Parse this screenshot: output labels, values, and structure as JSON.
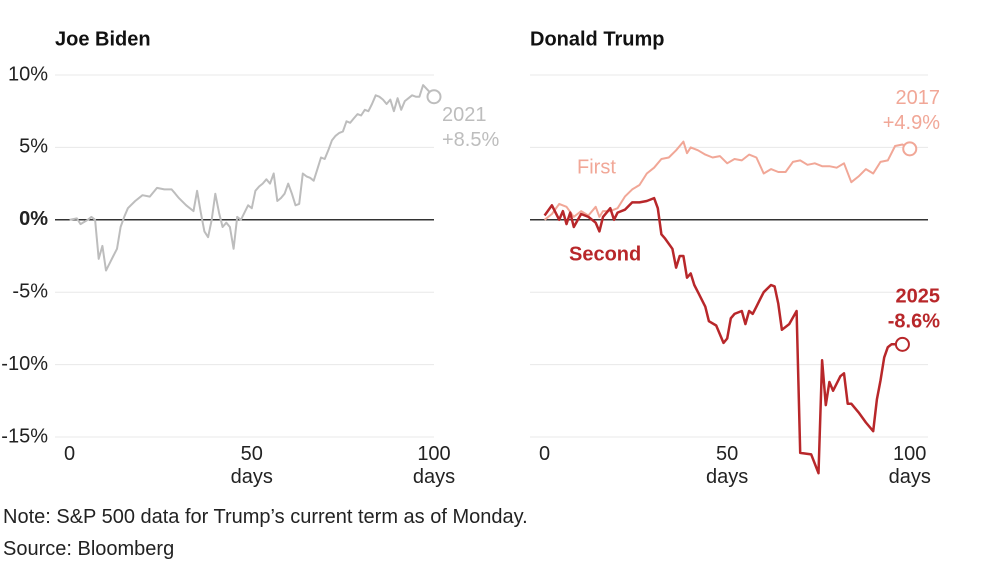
{
  "chart_data": [
    {
      "type": "line",
      "title": "Joe Biden",
      "xlim": [
        -4,
        100
      ],
      "xticks": [
        0,
        {
          "value": 50,
          "label": "50 days"
        },
        {
          "value": 100,
          "label": "100 days"
        }
      ],
      "ylim": [
        -15,
        10
      ],
      "yticks": [
        {
          "value": 10,
          "label": "10%"
        },
        {
          "value": 5,
          "label": "5%"
        },
        {
          "value": 0,
          "label": "0%"
        },
        {
          "value": -5,
          "label": "-5%"
        },
        {
          "value": -10,
          "label": "-10%"
        },
        {
          "value": -15,
          "label": "-15%"
        }
      ],
      "ytick_labels": true,
      "grid": true,
      "series": [
        {
          "color": "#bdbdbd",
          "end_labels": [
            "2021",
            "+8.5%"
          ],
          "x": [
            0,
            2,
            3,
            5,
            6,
            7,
            8,
            9,
            10,
            11,
            12,
            13,
            14,
            15,
            16,
            18,
            20,
            22,
            24,
            26,
            28,
            29,
            30,
            32,
            34,
            35,
            36,
            37,
            38,
            39,
            40,
            41,
            42,
            43,
            44,
            45,
            46,
            47,
            48,
            49,
            50,
            51,
            52,
            53,
            54,
            55,
            56,
            57,
            58,
            59,
            60,
            61,
            62,
            63,
            64,
            65,
            66,
            67,
            68,
            69,
            70,
            71,
            72,
            73,
            74,
            75,
            76,
            77,
            78,
            79,
            80,
            81,
            82,
            83,
            84,
            85,
            86,
            87,
            88,
            89,
            90,
            91,
            92,
            93,
            94,
            95,
            96,
            97,
            100
          ],
          "values": [
            0,
            0.1,
            -0.3,
            0,
            0.2,
            0,
            -2.7,
            -1.8,
            -3.5,
            -3,
            -2.5,
            -2,
            -0.5,
            0.2,
            0.8,
            1.3,
            1.7,
            1.6,
            2.2,
            2.1,
            2.1,
            1.8,
            1.5,
            1,
            0.6,
            2,
            0.5,
            -0.8,
            -1.2,
            0,
            1.8,
            0.5,
            -0.5,
            -0.2,
            -0.5,
            -2,
            0.2,
            0,
            0.5,
            1,
            0.8,
            2,
            2.3,
            2.5,
            2.8,
            2.5,
            3.2,
            1.3,
            1.5,
            1.8,
            2.5,
            1.8,
            1,
            1.1,
            3.2,
            3,
            2.9,
            2.7,
            3.5,
            4.3,
            4.2,
            4.8,
            5.5,
            5.8,
            6,
            6.1,
            6.8,
            6.7,
            7,
            7.3,
            7.2,
            7.6,
            7.5,
            8,
            8.6,
            8.5,
            8.3,
            8,
            8.3,
            7.5,
            8.4,
            7.6,
            8.2,
            8.4,
            8.6,
            8.5,
            8.5,
            9.3,
            8.5
          ]
        }
      ]
    },
    {
      "type": "line",
      "title": "Donald Trump",
      "xlim": [
        -4,
        105
      ],
      "xticks": [
        0,
        {
          "value": 50,
          "label": "50 days"
        },
        {
          "value": 100,
          "label": "100 days"
        }
      ],
      "ylim": [
        -15,
        10
      ],
      "yticks": [
        {
          "value": 10,
          "label": "10%"
        },
        {
          "value": 5,
          "label": "5%"
        },
        {
          "value": 0,
          "label": "0%"
        },
        {
          "value": -5,
          "label": "-5%"
        },
        {
          "value": -10,
          "label": "-10%"
        },
        {
          "value": -15,
          "label": "-15%"
        }
      ],
      "ytick_labels": false,
      "grid": true,
      "series": [
        {
          "name": "First",
          "color": "#f1a797",
          "end_labels": [
            "2017",
            "+4.9%"
          ],
          "x": [
            0,
            2,
            4,
            6,
            8,
            10,
            12,
            14,
            15,
            16,
            18,
            20,
            22,
            24,
            26,
            28,
            30,
            32,
            34,
            36,
            38,
            39,
            40,
            42,
            44,
            46,
            48,
            50,
            52,
            54,
            56,
            58,
            60,
            62,
            64,
            66,
            68,
            70,
            72,
            74,
            76,
            78,
            80,
            82,
            84,
            86,
            88,
            90,
            92,
            94,
            96,
            98,
            100
          ],
          "values": [
            0,
            0.4,
            1.1,
            0.9,
            0.2,
            0.6,
            0.3,
            0.9,
            0.2,
            0.6,
            0.6,
            0.8,
            1.6,
            2.1,
            2.4,
            3.2,
            3.6,
            4.2,
            4.3,
            4.8,
            5.4,
            4.6,
            5,
            4.8,
            4.5,
            4.3,
            4.4,
            3.9,
            4.2,
            4.1,
            4.5,
            4.3,
            3.2,
            3.5,
            3.3,
            3.3,
            4,
            4.1,
            3.8,
            3.9,
            3.7,
            3.7,
            3.6,
            3.9,
            2.6,
            3,
            3.5,
            3.2,
            4,
            4.1,
            5.1,
            5.2,
            4.9
          ]
        },
        {
          "name": "Second",
          "color": "#b8272a",
          "end_labels": [
            "2025",
            "-8.6%"
          ],
          "x": [
            0,
            2,
            4,
            5,
            6,
            7,
            8,
            10,
            12,
            14,
            15,
            16,
            18,
            19,
            20,
            22,
            24,
            26,
            28,
            30,
            31,
            32,
            33,
            35,
            36,
            37,
            38,
            39,
            40,
            41,
            42,
            44,
            45,
            47,
            49,
            50,
            51,
            52,
            54,
            55,
            56,
            57,
            58,
            59,
            60,
            62,
            63,
            64,
            65,
            67,
            69,
            70,
            73,
            75,
            76,
            77,
            78,
            79,
            81,
            82,
            83,
            84,
            86,
            88,
            90,
            91,
            92,
            93,
            94,
            95,
            98
          ],
          "values": [
            0.3,
            1,
            0,
            0.6,
            -0.3,
            0.5,
            -0.5,
            0.4,
            0.2,
            -0.2,
            -0.8,
            0.2,
            0.8,
            0,
            0.5,
            0.7,
            1.2,
            1.2,
            1.3,
            1.5,
            0.8,
            -1,
            -1.3,
            -2,
            -3.3,
            -2.5,
            -2.5,
            -4,
            -3.7,
            -4.5,
            -5,
            -6,
            -7,
            -7.3,
            -8.5,
            -8.2,
            -6.8,
            -6.5,
            -6.3,
            -7.2,
            -6.3,
            -6.5,
            -6,
            -5.5,
            -5,
            -4.5,
            -4.6,
            -5.8,
            -7.6,
            -7.2,
            -6.3,
            -16.1,
            -16.2,
            -17.5,
            -9.7,
            -12.8,
            -11.2,
            -11.8,
            -10.8,
            -10.6,
            -12.7,
            -12.7,
            -13.3,
            -14,
            -14.6,
            -12.4,
            -11.1,
            -9.5,
            -8.8,
            -8.6,
            -8.6
          ]
        }
      ]
    }
  ],
  "note": "Note: S&P 500 data for Trump’s current term as of Monday.",
  "source": "Source: Bloomberg"
}
